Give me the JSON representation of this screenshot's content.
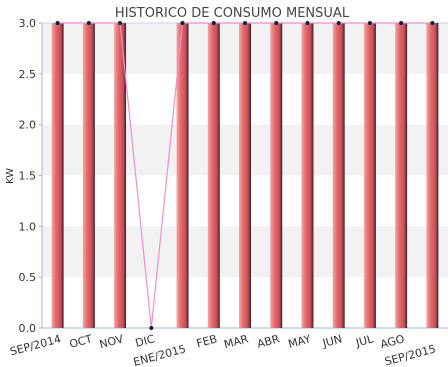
{
  "chart_data": {
    "type": "bar",
    "title": "HISTORICO DE CONSUMO MENSUAL",
    "ylabel": "KW",
    "xlabel": "",
    "ylim": [
      0,
      3.0
    ],
    "yticks": [
      "0.0",
      "0.5",
      "1.0",
      "1.5",
      "2.0",
      "2.5",
      "3.0"
    ],
    "categories": [
      "SEP/2014",
      "OCT",
      "NOV",
      "DIC",
      "ENE/2015",
      "FEB",
      "MAR",
      "ABR",
      "MAY",
      "JUN",
      "JUL",
      "AGO",
      "SEP/2015"
    ],
    "series": [
      {
        "values": [
          3.0,
          3.0,
          3.0,
          0.0,
          3.0,
          3.0,
          3.0,
          3.0,
          3.0,
          3.0,
          3.0,
          3.0,
          3.0
        ]
      }
    ],
    "line_overlay": true,
    "grid": "horizontal bands",
    "colors": {
      "bar": "#e46b6b",
      "line": "#f08fc8",
      "marker": "#1a1a3a",
      "band": "#f2f2f2"
    }
  }
}
